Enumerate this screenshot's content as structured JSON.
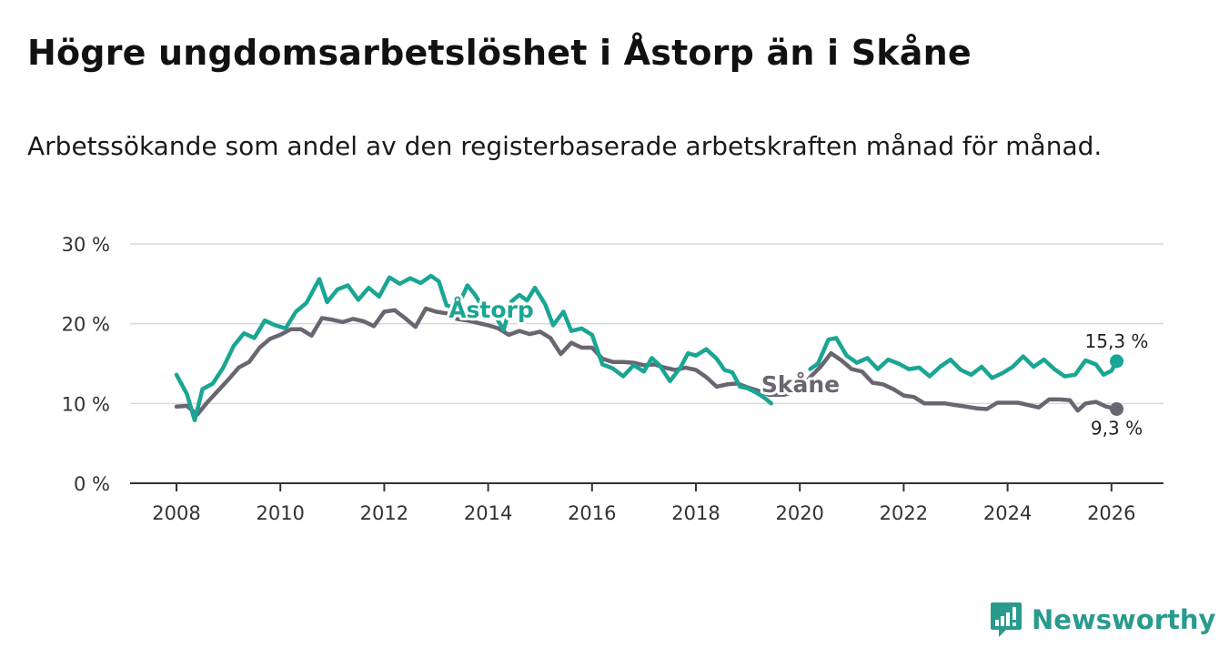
{
  "header": {
    "title": "Högre ungdomsarbetslöshet i Åstorp än i Skåne",
    "subtitle": "Arbetssökande som andel av den registerbaserade arbetskraften månad för månad."
  },
  "brand": {
    "name": "Newsworthy",
    "color": "#2a9a8e"
  },
  "chart_data": {
    "type": "line",
    "title": "Högre ungdomsarbetslöshet i Åstorp än i Skåne",
    "subtitle": "Arbetssökande som andel av den registerbaserade arbetskraften månad för månad.",
    "xlabel": "",
    "ylabel": "",
    "x_ticks": [
      "2008",
      "2010",
      "2012",
      "2014",
      "2016",
      "2018",
      "2020",
      "2022",
      "2024",
      "2026"
    ],
    "y_ticks": [
      "0 %",
      "10 %",
      "20 %",
      "30 %"
    ],
    "ylim": [
      0,
      30
    ],
    "xlim": [
      2007.1,
      2027.0
    ],
    "grid": true,
    "series": [
      {
        "name": "Åstorp",
        "color": "#1aa594",
        "end_label": "15,3 %",
        "gap": [
          2019.45,
          2020.2
        ],
        "points": [
          [
            2008.0,
            13.6
          ],
          [
            2008.2,
            11.2
          ],
          [
            2008.35,
            7.9
          ],
          [
            2008.5,
            11.8
          ],
          [
            2008.7,
            12.5
          ],
          [
            2008.9,
            14.5
          ],
          [
            2009.1,
            17.2
          ],
          [
            2009.3,
            18.8
          ],
          [
            2009.5,
            18.2
          ],
          [
            2009.7,
            20.4
          ],
          [
            2009.9,
            19.8
          ],
          [
            2010.1,
            19.4
          ],
          [
            2010.3,
            21.5
          ],
          [
            2010.5,
            22.6
          ],
          [
            2010.6,
            23.8
          ],
          [
            2010.75,
            25.6
          ],
          [
            2010.9,
            22.7
          ],
          [
            2011.1,
            24.3
          ],
          [
            2011.3,
            24.8
          ],
          [
            2011.5,
            23.0
          ],
          [
            2011.7,
            24.5
          ],
          [
            2011.9,
            23.4
          ],
          [
            2012.1,
            25.8
          ],
          [
            2012.3,
            25.0
          ],
          [
            2012.5,
            25.7
          ],
          [
            2012.7,
            25.1
          ],
          [
            2012.9,
            26.0
          ],
          [
            2013.05,
            25.3
          ],
          [
            2013.2,
            22.3
          ],
          [
            2013.4,
            21.9
          ],
          [
            2013.6,
            24.8
          ],
          [
            2013.75,
            23.6
          ],
          [
            2013.9,
            22.0
          ],
          [
            2014.1,
            21.4
          ],
          [
            2014.3,
            19.2
          ],
          [
            2014.45,
            22.8
          ],
          [
            2014.6,
            23.6
          ],
          [
            2014.75,
            22.9
          ],
          [
            2014.9,
            24.5
          ],
          [
            2015.1,
            22.4
          ],
          [
            2015.25,
            19.8
          ],
          [
            2015.45,
            21.5
          ],
          [
            2015.6,
            19.1
          ],
          [
            2015.8,
            19.4
          ],
          [
            2016.0,
            18.6
          ],
          [
            2016.2,
            14.9
          ],
          [
            2016.4,
            14.4
          ],
          [
            2016.6,
            13.4
          ],
          [
            2016.8,
            14.8
          ],
          [
            2017.0,
            14.0
          ],
          [
            2017.15,
            15.7
          ],
          [
            2017.3,
            14.8
          ],
          [
            2017.5,
            12.8
          ],
          [
            2017.7,
            14.5
          ],
          [
            2017.85,
            16.3
          ],
          [
            2018.0,
            16.0
          ],
          [
            2018.2,
            16.8
          ],
          [
            2018.4,
            15.6
          ],
          [
            2018.55,
            14.2
          ],
          [
            2018.7,
            13.9
          ],
          [
            2018.85,
            12.1
          ],
          [
            2019.0,
            11.9
          ],
          [
            2019.15,
            11.4
          ],
          [
            2019.3,
            10.8
          ],
          [
            2019.45,
            10.0
          ],
          [
            2020.2,
            14.3
          ],
          [
            2020.35,
            15.0
          ],
          [
            2020.55,
            18.0
          ],
          [
            2020.7,
            18.2
          ],
          [
            2020.9,
            16.0
          ],
          [
            2021.1,
            15.1
          ],
          [
            2021.3,
            15.7
          ],
          [
            2021.5,
            14.3
          ],
          [
            2021.7,
            15.5
          ],
          [
            2021.9,
            15.0
          ],
          [
            2022.1,
            14.3
          ],
          [
            2022.3,
            14.5
          ],
          [
            2022.5,
            13.4
          ],
          [
            2022.7,
            14.6
          ],
          [
            2022.9,
            15.5
          ],
          [
            2023.1,
            14.2
          ],
          [
            2023.3,
            13.6
          ],
          [
            2023.5,
            14.6
          ],
          [
            2023.7,
            13.2
          ],
          [
            2023.9,
            13.8
          ],
          [
            2024.1,
            14.6
          ],
          [
            2024.3,
            15.9
          ],
          [
            2024.5,
            14.6
          ],
          [
            2024.7,
            15.5
          ],
          [
            2024.9,
            14.3
          ],
          [
            2025.1,
            13.4
          ],
          [
            2025.3,
            13.6
          ],
          [
            2025.5,
            15.4
          ],
          [
            2025.7,
            14.9
          ],
          [
            2025.85,
            13.6
          ],
          [
            2026.0,
            14.1
          ],
          [
            2026.1,
            15.3
          ]
        ]
      },
      {
        "name": "Skåne",
        "color": "#696671",
        "end_label": "9,3 %",
        "points": [
          [
            2008.0,
            9.6
          ],
          [
            2008.2,
            9.7
          ],
          [
            2008.4,
            8.6
          ],
          [
            2008.6,
            10.2
          ],
          [
            2008.8,
            11.6
          ],
          [
            2009.0,
            13.0
          ],
          [
            2009.2,
            14.5
          ],
          [
            2009.4,
            15.2
          ],
          [
            2009.6,
            17.0
          ],
          [
            2009.8,
            18.1
          ],
          [
            2010.0,
            18.6
          ],
          [
            2010.2,
            19.3
          ],
          [
            2010.4,
            19.3
          ],
          [
            2010.6,
            18.5
          ],
          [
            2010.8,
            20.7
          ],
          [
            2011.0,
            20.5
          ],
          [
            2011.2,
            20.2
          ],
          [
            2011.4,
            20.6
          ],
          [
            2011.6,
            20.3
          ],
          [
            2011.8,
            19.7
          ],
          [
            2012.0,
            21.5
          ],
          [
            2012.2,
            21.7
          ],
          [
            2012.4,
            20.7
          ],
          [
            2012.6,
            19.6
          ],
          [
            2012.8,
            21.9
          ],
          [
            2013.0,
            21.5
          ],
          [
            2013.2,
            21.3
          ],
          [
            2013.4,
            20.6
          ],
          [
            2013.6,
            20.4
          ],
          [
            2013.8,
            20.1
          ],
          [
            2014.0,
            19.8
          ],
          [
            2014.2,
            19.4
          ],
          [
            2014.4,
            18.6
          ],
          [
            2014.6,
            19.1
          ],
          [
            2014.8,
            18.7
          ],
          [
            2015.0,
            19.0
          ],
          [
            2015.2,
            18.2
          ],
          [
            2015.4,
            16.2
          ],
          [
            2015.6,
            17.6
          ],
          [
            2015.8,
            17.0
          ],
          [
            2016.0,
            17.0
          ],
          [
            2016.2,
            15.6
          ],
          [
            2016.4,
            15.2
          ],
          [
            2016.6,
            15.2
          ],
          [
            2016.8,
            15.1
          ],
          [
            2017.0,
            14.8
          ],
          [
            2017.2,
            14.9
          ],
          [
            2017.4,
            14.5
          ],
          [
            2017.6,
            14.2
          ],
          [
            2017.8,
            14.5
          ],
          [
            2018.0,
            14.2
          ],
          [
            2018.2,
            13.3
          ],
          [
            2018.4,
            12.1
          ],
          [
            2018.6,
            12.4
          ],
          [
            2018.8,
            12.5
          ],
          [
            2019.0,
            12.0
          ],
          [
            2019.2,
            11.6
          ],
          [
            2019.4,
            11.1
          ],
          [
            2019.7,
            11.1
          ],
          [
            2020.0,
            11.7
          ],
          [
            2020.2,
            13.3
          ],
          [
            2020.4,
            14.6
          ],
          [
            2020.6,
            16.3
          ],
          [
            2020.8,
            15.4
          ],
          [
            2021.0,
            14.3
          ],
          [
            2021.2,
            14.0
          ],
          [
            2021.4,
            12.6
          ],
          [
            2021.6,
            12.4
          ],
          [
            2021.8,
            11.8
          ],
          [
            2022.0,
            11.0
          ],
          [
            2022.2,
            10.8
          ],
          [
            2022.4,
            10.0
          ],
          [
            2022.6,
            10.0
          ],
          [
            2022.8,
            10.0
          ],
          [
            2023.0,
            9.8
          ],
          [
            2023.2,
            9.6
          ],
          [
            2023.4,
            9.4
          ],
          [
            2023.6,
            9.3
          ],
          [
            2023.8,
            10.1
          ],
          [
            2024.0,
            10.1
          ],
          [
            2024.2,
            10.1
          ],
          [
            2024.4,
            9.8
          ],
          [
            2024.6,
            9.5
          ],
          [
            2024.8,
            10.5
          ],
          [
            2025.0,
            10.5
          ],
          [
            2025.2,
            10.4
          ],
          [
            2025.35,
            9.1
          ],
          [
            2025.5,
            10.0
          ],
          [
            2025.7,
            10.2
          ],
          [
            2025.9,
            9.6
          ],
          [
            2026.1,
            9.3
          ]
        ]
      }
    ]
  }
}
